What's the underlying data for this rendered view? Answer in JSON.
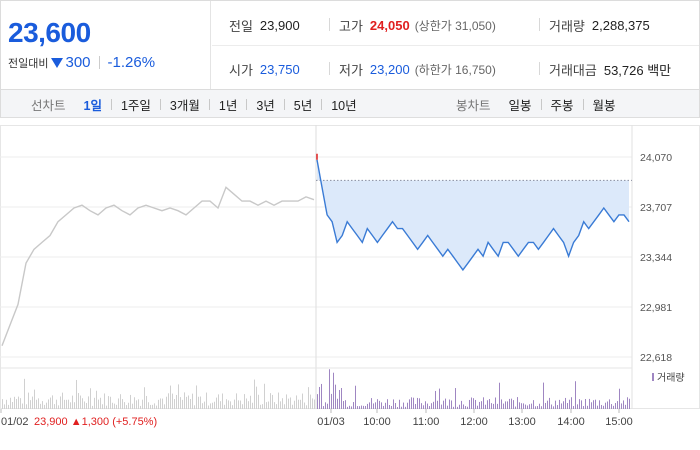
{
  "summary": {
    "current_price": "23,600",
    "change_label": "전일대비",
    "change_value": "300",
    "change_rate": "-1.26%",
    "prev_close_label": "전일",
    "prev_close": "23,900",
    "high_label": "고가",
    "high": "24,050",
    "upper_limit": "(상한가 31,050)",
    "volume_label": "거래량",
    "volume": "2,288,375",
    "open_label": "시가",
    "open": "23,750",
    "low_label": "저가",
    "low": "23,200",
    "lower_limit": "(하한가 16,750)",
    "trade_value_label": "거래대금",
    "trade_value": "53,726 백만"
  },
  "tabs": {
    "line_title": "선차트",
    "line_tabs": [
      "1일",
      "1주일",
      "3개월",
      "1년",
      "3년",
      "5년",
      "10년"
    ],
    "line_active": 0,
    "candle_title": "봉차트",
    "candle_tabs": [
      "일봉",
      "주봉",
      "월봉"
    ]
  },
  "colors": {
    "accent_blue": "#1a5cdc",
    "up_red": "#e02020",
    "prev_day_line": "#c8c8c8",
    "today_line": "#3a7bd5",
    "today_fill": "#dce9fa",
    "volume_prev": "#d0d0d0",
    "volume_today": "#9f86c2"
  },
  "chart_data": {
    "type": "line",
    "y_ticks": [
      "24,070",
      "23,707",
      "23,344",
      "22,981",
      "22,618"
    ],
    "ylim": [
      22618,
      24070
    ],
    "x_labels": [
      "01/02",
      "01/03",
      "10:00",
      "11:00",
      "12:00",
      "13:00",
      "14:00",
      "15:00"
    ],
    "prev_close_level": 23900,
    "prev_day_note": {
      "date": "01/02",
      "close": "23,900",
      "change": "1,300",
      "rate": "(+5.75%)"
    },
    "volume_legend": "거래량",
    "series": [
      {
        "session": "01/02",
        "values": [
          22700,
          22850,
          23000,
          23300,
          23400,
          23450,
          23500,
          23600,
          23650,
          23700,
          23720,
          23680,
          23650,
          23700,
          23720,
          23680,
          23650,
          23700,
          23720,
          23700,
          23680,
          23700,
          23680,
          23650,
          23700,
          23750,
          23750,
          23700,
          23850,
          23800,
          23750,
          23750,
          23720,
          23750,
          23720,
          23750,
          23750,
          23750,
          23780,
          23760
        ]
      },
      {
        "session": "01/03",
        "values": [
          24050,
          23850,
          23650,
          23600,
          23450,
          23500,
          23600,
          23550,
          23500,
          23450,
          23550,
          23500,
          23450,
          23500,
          23550,
          23600,
          23550,
          23550,
          23500,
          23450,
          23400,
          23450,
          23500,
          23450,
          23400,
          23350,
          23400,
          23350,
          23300,
          23250,
          23300,
          23350,
          23400,
          23350,
          23450,
          23400,
          23350,
          23450,
          23450,
          23400,
          23350,
          23400,
          23450,
          23450,
          23400,
          23450,
          23500,
          23550,
          23500,
          23450,
          23350,
          23450,
          23500,
          23600,
          23550,
          23600,
          23650,
          23700,
          23650,
          23600,
          23650,
          23650,
          23600
        ]
      }
    ]
  }
}
